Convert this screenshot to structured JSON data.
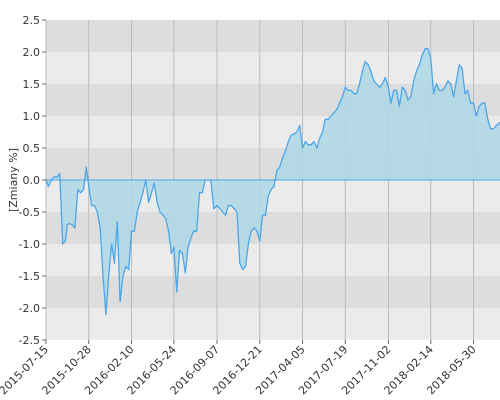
{
  "chart_data": {
    "type": "area",
    "title": "",
    "xlabel": "",
    "ylabel": "[Zmiany %]",
    "ylim": [
      -2.5,
      2.5
    ],
    "yticks": [
      "2.5",
      "2.0",
      "1.5",
      "1.0",
      "0.5",
      "0.0",
      "-0.5",
      "-1.0",
      "-1.5",
      "-2.0",
      "-2.5"
    ],
    "xtick_labels": [
      "2015-07-15",
      "2015-10-28",
      "2016-02-10",
      "2016-05-24",
      "2016-09-07",
      "2016-12-21",
      "2017-04-05",
      "2017-07-19",
      "2017-11-02",
      "2018-02-14",
      "2018-05-30"
    ],
    "xlim": [
      "2015-07-15",
      "2018-08-03"
    ],
    "grid": true,
    "grid_band_colors": [
      "#dddddd",
      "#ebebeb"
    ],
    "line_color": "#4da6e8",
    "fill_color": "#add8e6",
    "series": [
      {
        "x": [
          "2015-07-15",
          "2015-07-21",
          "2015-07-28",
          "2015-08-04",
          "2015-08-11",
          "2015-08-18",
          "2015-08-25",
          "2015-09-01",
          "2015-09-05",
          "2015-09-10",
          "2015-09-17",
          "2015-09-24",
          "2015-10-01",
          "2015-10-08",
          "2015-10-15",
          "2015-10-22",
          "2015-10-28",
          "2015-11-04",
          "2015-11-11",
          "2015-11-18",
          "2015-11-25",
          "2015-12-02",
          "2015-12-09",
          "2015-12-16",
          "2015-12-23",
          "2015-12-30",
          "2016-01-06",
          "2016-01-13",
          "2016-01-20",
          "2016-01-27",
          "2016-02-03",
          "2016-02-10",
          "2016-02-17",
          "2016-02-24",
          "2016-03-02",
          "2016-03-09",
          "2016-03-16",
          "2016-03-23",
          "2016-03-30",
          "2016-04-06",
          "2016-04-13",
          "2016-04-20",
          "2016-04-27",
          "2016-05-04",
          "2016-05-11",
          "2016-05-18",
          "2016-05-24",
          "2016-05-31",
          "2016-06-07",
          "2016-06-14",
          "2016-06-21",
          "2016-06-28",
          "2016-07-05",
          "2016-07-12",
          "2016-07-19",
          "2016-07-26",
          "2016-08-02",
          "2016-08-09",
          "2016-08-16",
          "2016-08-23",
          "2016-08-30",
          "2016-09-07",
          "2016-09-14",
          "2016-09-21",
          "2016-09-28",
          "2016-10-05",
          "2016-10-12",
          "2016-10-19",
          "2016-10-26",
          "2016-11-02",
          "2016-11-09",
          "2016-11-16",
          "2016-11-23",
          "2016-11-30",
          "2016-12-07",
          "2016-12-14",
          "2016-12-21",
          "2016-12-28",
          "2017-01-04",
          "2017-01-11",
          "2017-01-18",
          "2017-01-25",
          "2017-02-01",
          "2017-02-08",
          "2017-02-15",
          "2017-02-22",
          "2017-03-01",
          "2017-03-08",
          "2017-03-15",
          "2017-03-22",
          "2017-03-29",
          "2017-04-05",
          "2017-04-12",
          "2017-04-19",
          "2017-04-26",
          "2017-05-03",
          "2017-05-10",
          "2017-05-17",
          "2017-05-24",
          "2017-05-31",
          "2017-06-07",
          "2017-06-14",
          "2017-06-21",
          "2017-06-28",
          "2017-07-05",
          "2017-07-12",
          "2017-07-19",
          "2017-07-26",
          "2017-08-02",
          "2017-08-09",
          "2017-08-16",
          "2017-08-23",
          "2017-08-30",
          "2017-09-06",
          "2017-09-13",
          "2017-09-20",
          "2017-09-27",
          "2017-10-04",
          "2017-10-11",
          "2017-10-18",
          "2017-10-25",
          "2017-11-02",
          "2017-11-08",
          "2017-11-15",
          "2017-11-22",
          "2017-11-29",
          "2017-12-06",
          "2017-12-13",
          "2017-12-20",
          "2017-12-27",
          "2018-01-03",
          "2018-01-10",
          "2018-01-17",
          "2018-01-24",
          "2018-01-31",
          "2018-02-07",
          "2018-02-14",
          "2018-02-21",
          "2018-02-28",
          "2018-03-07",
          "2018-03-14",
          "2018-03-21",
          "2018-03-28",
          "2018-04-04",
          "2018-04-11",
          "2018-04-18",
          "2018-04-25",
          "2018-05-02",
          "2018-05-09",
          "2018-05-16",
          "2018-05-23",
          "2018-05-30",
          "2018-06-06",
          "2018-06-13",
          "2018-06-20",
          "2018-06-27",
          "2018-07-04",
          "2018-07-11",
          "2018-07-18",
          "2018-07-25",
          "2018-08-03"
        ],
        "values": [
          0.0,
          -0.1,
          0.0,
          0.05,
          0.05,
          0.1,
          -1.0,
          -0.95,
          -0.7,
          -0.68,
          -0.7,
          -0.75,
          -0.15,
          -0.2,
          -0.15,
          0.2,
          -0.1,
          -0.4,
          -0.4,
          -0.5,
          -0.75,
          -1.5,
          -2.1,
          -1.5,
          -1.0,
          -1.3,
          -0.65,
          -1.9,
          -1.5,
          -1.35,
          -1.4,
          -0.8,
          -0.8,
          -0.5,
          -0.35,
          -0.2,
          0.0,
          -0.35,
          -0.2,
          -0.05,
          -0.35,
          -0.5,
          -0.55,
          -0.6,
          -0.8,
          -1.15,
          -1.05,
          -1.75,
          -1.1,
          -1.15,
          -1.45,
          -1.05,
          -0.9,
          -0.8,
          -0.8,
          -0.2,
          -0.2,
          0.0,
          0.0,
          0.0,
          -0.45,
          -0.4,
          -0.45,
          -0.5,
          -0.55,
          -0.4,
          -0.4,
          -0.45,
          -0.5,
          -1.3,
          -1.4,
          -1.35,
          -1.0,
          -0.8,
          -0.75,
          -0.8,
          -0.95,
          -0.55,
          -0.55,
          -0.25,
          -0.15,
          -0.1,
          0.15,
          0.2,
          0.35,
          0.45,
          0.6,
          0.7,
          0.72,
          0.75,
          0.85,
          0.5,
          0.6,
          0.55,
          0.55,
          0.6,
          0.5,
          0.65,
          0.75,
          0.95,
          0.95,
          1.0,
          1.05,
          1.1,
          1.2,
          1.3,
          1.45,
          1.4,
          1.4,
          1.35,
          1.35,
          1.5,
          1.7,
          1.85,
          1.8,
          1.7,
          1.55,
          1.5,
          1.45,
          1.5,
          1.6,
          1.45,
          1.2,
          1.4,
          1.4,
          1.15,
          1.45,
          1.4,
          1.25,
          1.3,
          1.55,
          1.7,
          1.8,
          1.95,
          2.05,
          2.05,
          1.9,
          1.35,
          1.5,
          1.4,
          1.4,
          1.45,
          1.55,
          1.5,
          1.3,
          1.55,
          1.8,
          1.75,
          1.35,
          1.4,
          1.2,
          1.2,
          1.0,
          1.15,
          1.2,
          1.2,
          0.95,
          0.8,
          0.8,
          0.85,
          0.9
        ]
      }
    ]
  }
}
